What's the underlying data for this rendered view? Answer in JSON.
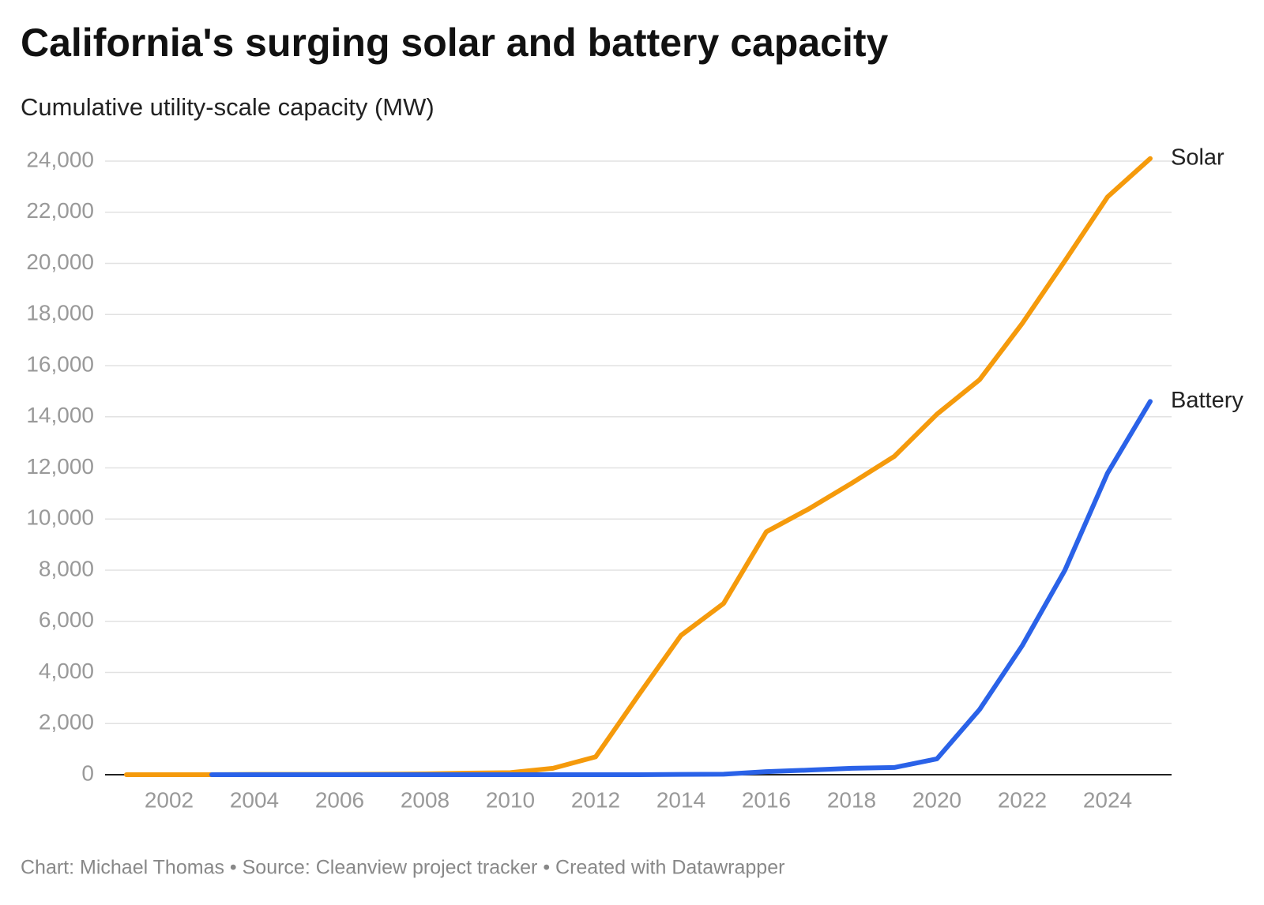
{
  "chart_data": {
    "type": "line",
    "title": "California's surging solar and battery capacity",
    "subtitle": "Cumulative utility-scale capacity (MW)",
    "footer": "Chart: Michael Thomas • Source: Cleanview project tracker • Created with Datawrapper",
    "x": [
      2001,
      2002,
      2003,
      2004,
      2005,
      2006,
      2007,
      2008,
      2009,
      2010,
      2011,
      2012,
      2013,
      2014,
      2015,
      2016,
      2017,
      2018,
      2019,
      2020,
      2021,
      2022,
      2023,
      2024,
      2025
    ],
    "series": [
      {
        "name": "Solar",
        "color": "#f59a0b",
        "values": [
          0,
          0,
          0,
          10,
          10,
          10,
          20,
          30,
          60,
          80,
          250,
          700,
          3100,
          5450,
          6700,
          9500,
          10400,
          11400,
          12450,
          14100,
          15450,
          17650,
          20100,
          22600,
          24100
        ]
      },
      {
        "name": "Battery",
        "color": "#2a62e8",
        "values": [
          null,
          null,
          0,
          0,
          0,
          0,
          0,
          0,
          0,
          0,
          0,
          0,
          0,
          10,
          20,
          120,
          180,
          250,
          280,
          620,
          2550,
          5050,
          8000,
          11800,
          14600
        ]
      }
    ],
    "xlim": [
      2000.5,
      2025.5
    ],
    "xticks": [
      2002,
      2004,
      2006,
      2008,
      2010,
      2012,
      2014,
      2016,
      2018,
      2020,
      2022,
      2024
    ],
    "ylim": [
      0,
      24000
    ],
    "yticks": [
      0,
      {
        "value": 2000,
        "label": "2,000"
      },
      {
        "value": 4000,
        "label": "4,000"
      },
      {
        "value": 6000,
        "label": "6,000"
      },
      {
        "value": 8000,
        "label": "8,000"
      },
      {
        "value": 10000,
        "label": "10,000"
      },
      {
        "value": 12000,
        "label": "12,000"
      },
      {
        "value": 14000,
        "label": "14,000"
      },
      {
        "value": 16000,
        "label": "16,000"
      },
      {
        "value": 18000,
        "label": "18,000"
      },
      {
        "value": 20000,
        "label": "20,000"
      },
      {
        "value": 22000,
        "label": "22,000"
      },
      {
        "value": 24000,
        "label": "24,000"
      }
    ],
    "grid": true
  }
}
